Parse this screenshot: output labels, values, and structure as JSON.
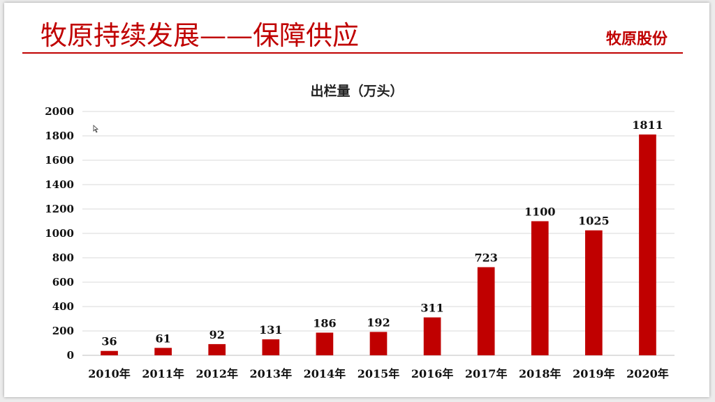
{
  "slide": {
    "title": "牧原持续发展——保障供应",
    "brand": "牧原股份"
  },
  "colors": {
    "accent": "#c00000",
    "bar": "#c00000",
    "grid": "#d9d9d9"
  },
  "chart_data": {
    "type": "bar",
    "title": "出栏量（万头）",
    "categories": [
      "2010年",
      "2011年",
      "2012年",
      "2013年",
      "2014年",
      "2015年",
      "2016年",
      "2017年",
      "2018年",
      "2019年",
      "2020年"
    ],
    "values": [
      36,
      61,
      92,
      131,
      186,
      192,
      311,
      723,
      1100,
      1025,
      1811
    ],
    "ylim": [
      0,
      2000
    ],
    "yticks": [
      0,
      200,
      400,
      600,
      800,
      1000,
      1200,
      1400,
      1600,
      1800,
      2000
    ],
    "grid": true,
    "legend": "none",
    "data_labels": true
  }
}
